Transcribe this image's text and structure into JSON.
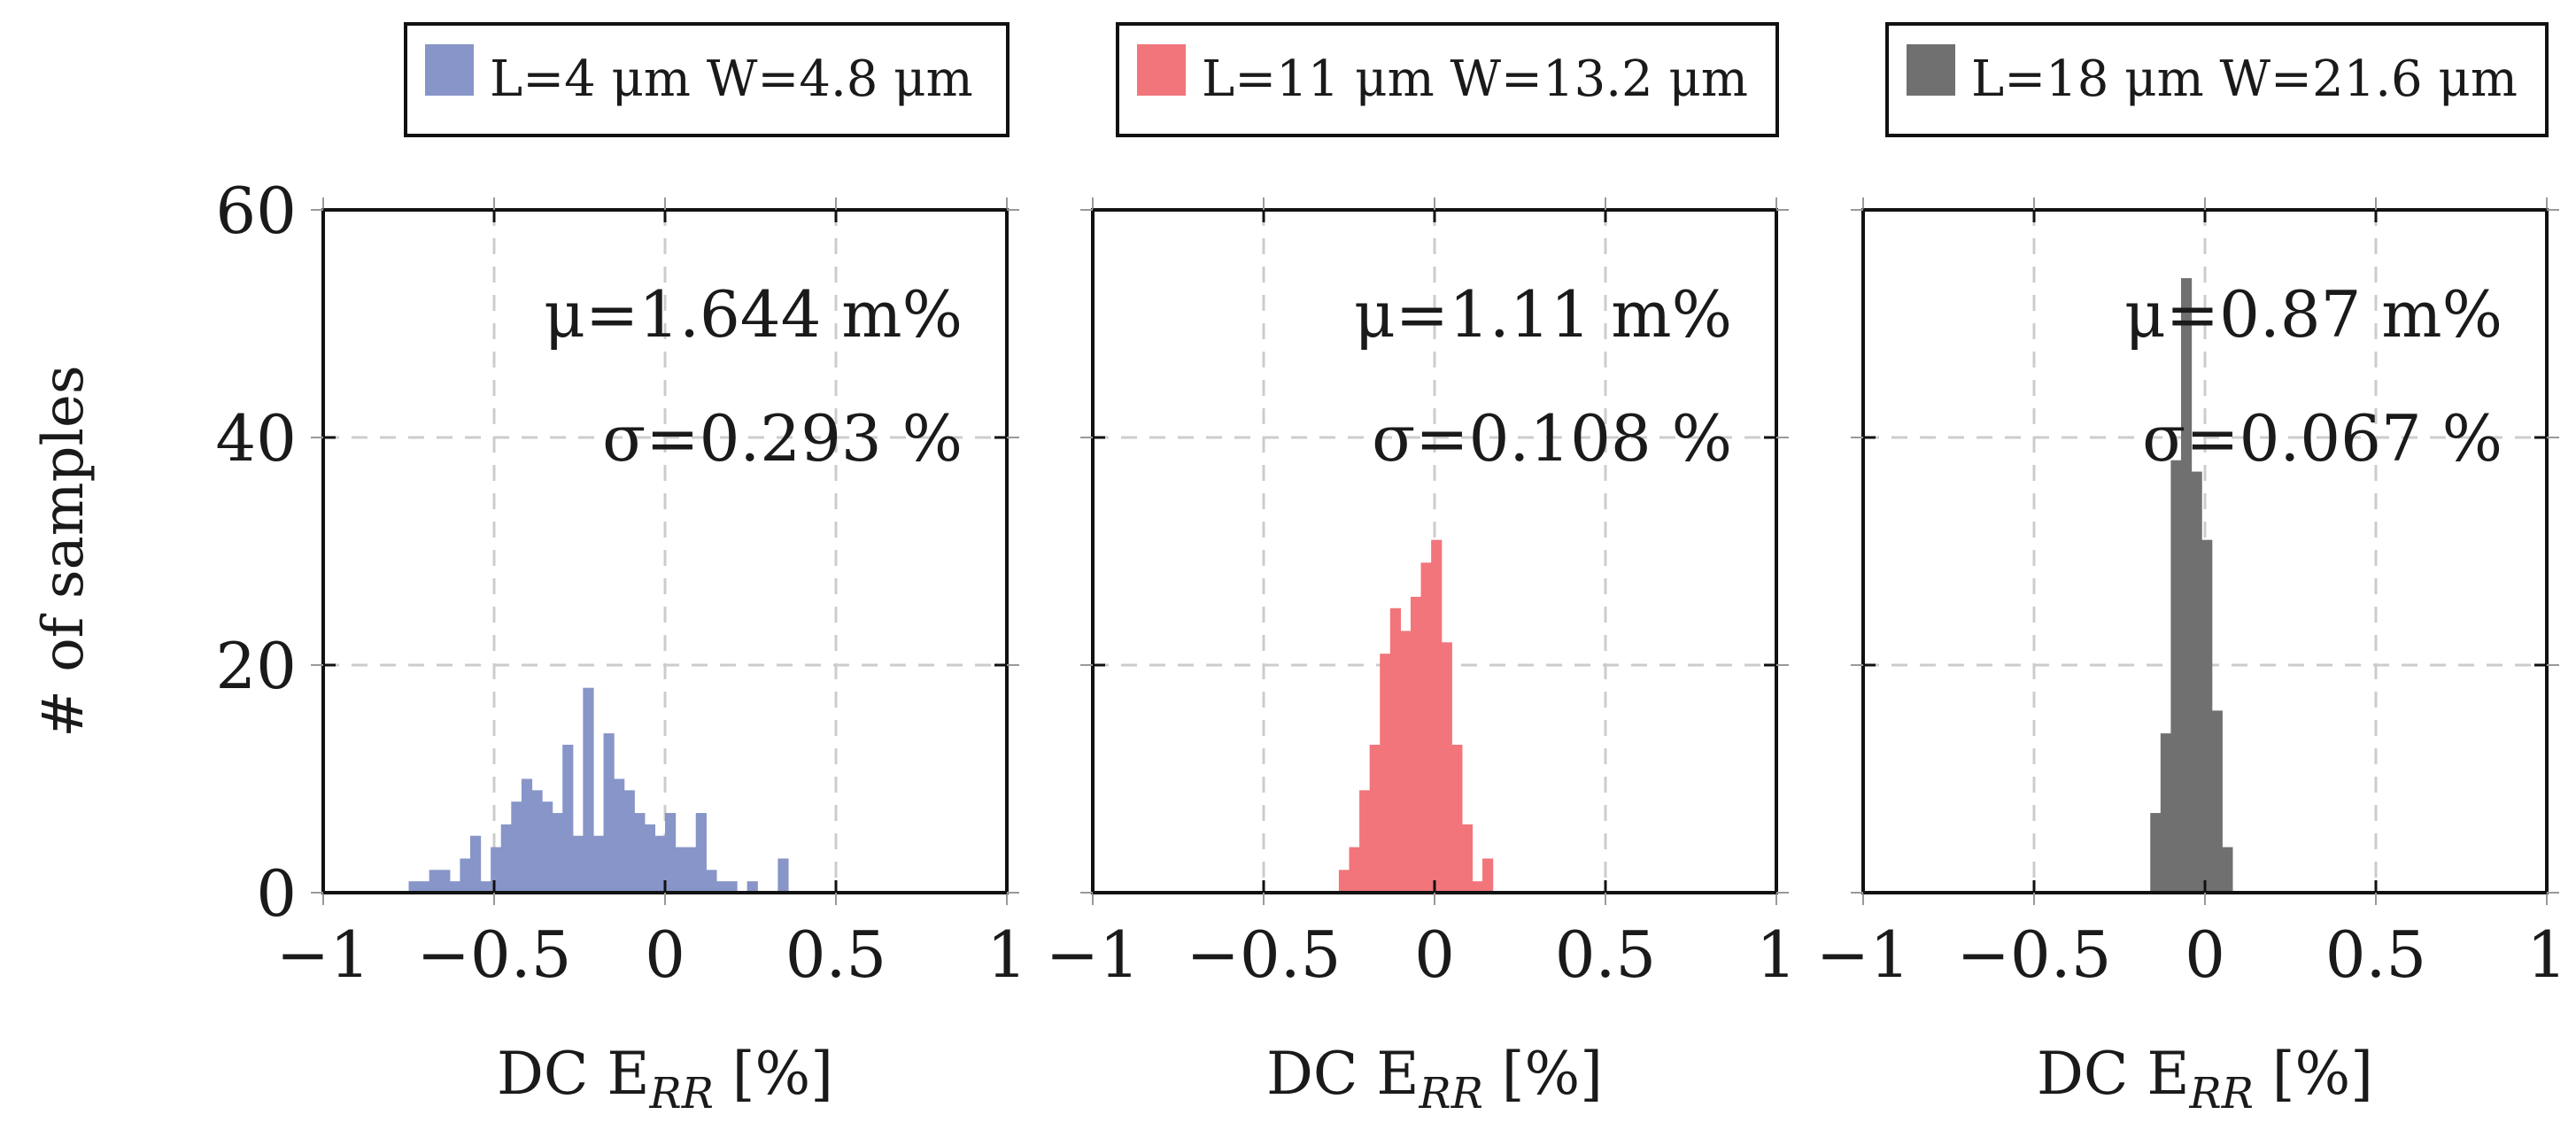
{
  "chart_data": [
    {
      "type": "bar",
      "legend": "L=4 μm W=4.8 μm",
      "color": "#8795c8",
      "stats": {
        "mu": "μ=1.644 m%",
        "sigma": "σ=0.293 %"
      },
      "xlabel": {
        "main": "DC E",
        "sub": "RR",
        "unit": " [%]"
      },
      "ylabel": "# of samples",
      "xlim": [
        -1,
        1
      ],
      "ylim": [
        0,
        60
      ],
      "xticks": [
        -1,
        -0.5,
        0,
        0.5,
        1
      ],
      "xtick_labels": [
        "−1",
        "−0.5",
        "0",
        "0.5",
        "1"
      ],
      "yticks": [
        0,
        20,
        40,
        60
      ],
      "ytick_labels": [
        "0",
        "20",
        "40",
        "60"
      ],
      "grid": true,
      "bins": {
        "start": -0.75,
        "width": 0.03,
        "counts": [
          1,
          1,
          2,
          2,
          1,
          3,
          5,
          1,
          4,
          6,
          8,
          10,
          9,
          8,
          7,
          13,
          5,
          18,
          5,
          14,
          10,
          9,
          7,
          6,
          5,
          7,
          4,
          4,
          7,
          2,
          1,
          1,
          0,
          1,
          0,
          0,
          3
        ]
      }
    },
    {
      "type": "bar",
      "legend": "L=11 μm W=13.2 μm",
      "color": "#f1757b",
      "stats": {
        "mu": "μ=1.11 m%",
        "sigma": "σ=0.108 %"
      },
      "xlabel": {
        "main": "DC E",
        "sub": "RR",
        "unit": " [%]"
      },
      "xlim": [
        -1,
        1
      ],
      "ylim": [
        0,
        60
      ],
      "xticks": [
        -1,
        -0.5,
        0,
        0.5,
        1
      ],
      "xtick_labels": [
        "−1",
        "−0.5",
        "0",
        "0.5",
        "1"
      ],
      "yticks": [
        0,
        20,
        40,
        60
      ],
      "grid": true,
      "bins": {
        "start": -0.28,
        "width": 0.03,
        "counts": [
          2,
          4,
          9,
          13,
          21,
          25,
          23,
          26,
          29,
          31,
          22,
          13,
          6,
          1,
          3
        ]
      }
    },
    {
      "type": "bar",
      "legend": "L=18 μm W=21.6 μm",
      "color": "#707070",
      "stats": {
        "mu": "μ=0.87 m%",
        "sigma": "σ=0.067 %"
      },
      "xlabel": {
        "main": "DC E",
        "sub": "RR",
        "unit": " [%]"
      },
      "xlim": [
        -1,
        1
      ],
      "ylim": [
        0,
        60
      ],
      "xticks": [
        -1,
        -0.5,
        0,
        0.5,
        1
      ],
      "xtick_labels": [
        "−1",
        "−0.5",
        "0",
        "0.5",
        "1"
      ],
      "yticks": [
        0,
        20,
        40,
        60
      ],
      "grid": true,
      "bins": {
        "start": -0.16,
        "width": 0.03,
        "counts": [
          7,
          14,
          38,
          54,
          37,
          31,
          16,
          4
        ]
      }
    }
  ]
}
